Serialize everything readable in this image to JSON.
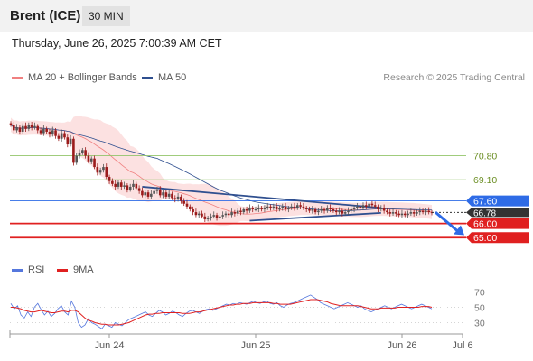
{
  "header": {
    "symbol": "Brent (ICE)",
    "timeframe": "30 MIN"
  },
  "datetime": "Thursday, June 26, 2025 7:00:39 AM CET",
  "legend": [
    {
      "label": "MA 20 + Bollinger Bands",
      "color": "#f08080"
    },
    {
      "label": "MA 50",
      "color": "#2f4f8f"
    }
  ],
  "credit": "Research © 2025 Trading Central",
  "colors": {
    "up": "#555555",
    "down": "#9b1b1b",
    "resistance": "#2e6be6",
    "support": "#e02020",
    "target": "#92c46a",
    "price_tag": "#333333"
  },
  "chart_data": [
    {
      "type": "candlestick",
      "ylim": [
        63.8,
        74.8
      ],
      "x_ticks": [
        "Jun 24",
        "Jun 25",
        "Jun 26",
        "Jul 6"
      ],
      "last_price": "66.78",
      "levels": [
        {
          "label": "70.80",
          "value": 70.8,
          "kind": "target"
        },
        {
          "label": "69.10",
          "value": 69.1,
          "kind": "target"
        },
        {
          "label": "67.60",
          "value": 67.6,
          "kind": "resistance"
        },
        {
          "label": "66.00",
          "value": 66.0,
          "kind": "support"
        },
        {
          "label": "65.00",
          "value": 65.0,
          "kind": "support"
        }
      ],
      "closes": [
        73.0,
        72.6,
        72.8,
        72.5,
        72.9,
        72.7,
        73.0,
        72.8,
        72.9,
        72.6,
        72.4,
        72.7,
        72.5,
        72.3,
        72.6,
        72.2,
        72.0,
        72.4,
        72.1,
        71.6,
        72.0,
        70.3,
        70.8,
        71.0,
        71.2,
        70.8,
        70.4,
        70.6,
        70.0,
        69.6,
        69.8,
        70.0,
        69.3,
        69.0,
        68.8,
        68.6,
        68.9,
        68.6,
        68.7,
        68.4,
        68.6,
        68.8,
        68.5,
        68.3,
        68.0,
        68.2,
        67.9,
        68.1,
        68.3,
        68.4,
        68.0,
        68.2,
        67.9,
        68.1,
        67.8,
        67.7,
        67.9,
        67.6,
        67.4,
        67.2,
        67.0,
        66.8,
        66.6,
        66.7,
        66.5,
        66.3,
        66.4,
        66.5,
        66.6,
        66.4,
        66.5,
        66.6,
        66.7,
        66.6,
        66.8,
        66.7,
        66.9,
        66.8,
        67.0,
        66.9,
        67.1,
        67.0,
        67.0,
        67.1,
        67.0,
        67.1,
        67.2,
        67.1,
        67.2,
        67.0,
        67.1,
        67.2,
        67.0,
        67.1,
        67.2,
        67.1,
        67.3,
        67.2,
        67.1,
        67.0,
        66.9,
        67.0,
        66.8,
        66.9,
        67.0,
        66.9,
        67.1,
        67.0,
        66.9,
        66.8,
        66.9,
        66.7,
        66.8,
        66.9,
        67.0,
        67.1,
        67.2,
        67.1,
        67.3,
        67.2,
        67.4,
        67.3,
        67.2,
        67.0,
        67.1,
        66.9,
        66.8,
        66.7,
        66.8,
        66.7,
        66.6,
        66.7,
        66.6,
        66.7,
        66.8,
        66.7,
        66.8,
        66.9,
        66.8,
        66.9,
        66.8,
        66.78
      ],
      "ma50_label": "MA 50",
      "ma20_label": "MA 20 + Bollinger Bands",
      "projection": {
        "from": 66.8,
        "to": 65.3
      },
      "triangle": {
        "upper": [
          68.6,
          67.1
        ],
        "lower": [
          66.2,
          66.75
        ]
      }
    },
    {
      "type": "line",
      "ylim": [
        20,
        80
      ],
      "y_ticks": [
        "70",
        "50",
        "30"
      ],
      "series": [
        {
          "name": "RSI",
          "color": "#5577dd",
          "values": [
            55,
            48,
            52,
            40,
            36,
            44,
            38,
            50,
            55,
            47,
            40,
            45,
            38,
            42,
            48,
            52,
            44,
            40,
            58,
            50,
            30,
            24,
            27,
            35,
            30,
            28,
            25,
            22,
            28,
            26,
            24,
            30,
            28,
            26,
            30,
            34,
            36,
            38,
            40,
            42,
            44,
            40,
            38,
            42,
            46,
            44,
            40,
            42,
            45,
            43,
            40,
            38,
            42,
            45,
            46,
            44,
            42,
            45,
            47,
            48,
            46,
            48,
            50,
            52,
            54,
            53,
            55,
            54,
            56,
            55,
            54,
            56,
            58,
            56,
            55,
            57,
            58,
            55,
            54,
            56,
            52,
            50,
            53,
            55,
            56,
            58,
            60,
            62,
            64,
            66,
            63,
            60,
            56,
            54,
            52,
            50,
            48,
            50,
            52,
            54,
            56,
            54,
            52,
            50,
            52,
            48,
            46,
            44,
            46,
            48,
            50,
            52,
            50,
            48,
            50,
            52,
            54,
            52,
            50,
            48,
            50,
            52,
            54,
            52,
            50,
            48
          ]
        },
        {
          "name": "9MA",
          "color": "#e02020",
          "values": [
            50,
            50,
            49,
            48,
            46,
            45,
            44,
            44,
            45,
            46,
            45,
            44,
            43,
            43,
            44,
            45,
            45,
            44,
            46,
            46,
            44,
            40,
            36,
            33,
            32,
            30,
            29,
            28,
            28,
            27,
            27,
            27,
            27,
            28,
            29,
            30,
            32,
            34,
            36,
            38,
            40,
            41,
            41,
            42,
            42,
            43,
            43,
            43,
            43,
            43,
            43,
            42,
            42,
            42,
            43,
            44,
            44,
            45,
            46,
            47,
            48,
            49,
            50,
            51,
            52,
            53,
            53,
            54,
            54,
            55,
            55,
            55,
            56,
            56,
            56,
            56,
            56,
            56,
            55,
            55,
            54,
            54,
            54,
            54,
            55,
            56,
            57,
            58,
            59,
            60,
            60,
            60,
            59,
            58,
            57,
            55,
            54,
            53,
            52,
            52,
            52,
            52,
            52,
            52,
            51,
            50,
            49,
            48,
            48,
            48,
            49,
            49,
            49,
            49,
            49,
            50,
            50,
            50,
            50,
            50,
            50,
            50,
            51,
            51,
            51,
            50
          ]
        }
      ]
    }
  ]
}
